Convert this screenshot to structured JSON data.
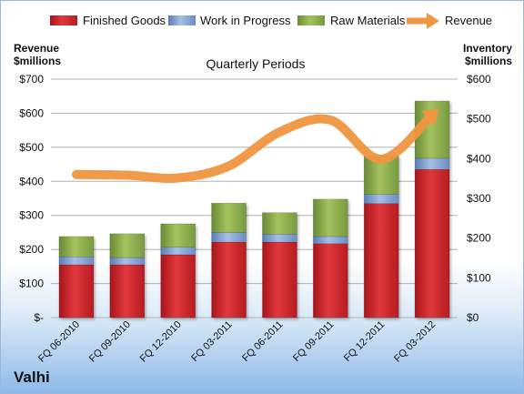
{
  "company": "Valhi",
  "chart_data": {
    "type": "bar",
    "subtype": "stacked bar with line overlay",
    "title": "Quarterly Periods",
    "y_left_label": [
      "Revenue",
      "$millions"
    ],
    "y_right_label": [
      "Inventory",
      "$millions"
    ],
    "y_left_range": [
      0,
      700
    ],
    "y_left_ticks": [
      "$-",
      "$100",
      "$200",
      "$300",
      "$400",
      "$500",
      "$600",
      "$700"
    ],
    "y_right_range": [
      0,
      600
    ],
    "y_right_ticks": [
      "$0",
      "$100",
      "$200",
      "$300",
      "$400",
      "$500",
      "$600"
    ],
    "grid": true,
    "legend_position": "top",
    "categories": [
      "FQ 06-2010",
      "FQ 09-2010",
      "FQ 12-2010",
      "FQ 03-2011",
      "FQ 06-2011",
      "FQ 09-2011",
      "FQ 12-2011",
      "FQ 03-2012"
    ],
    "series": [
      {
        "name": "Finished Goods",
        "axis": "right",
        "color": "#d42a2f",
        "values": [
          133,
          133,
          158,
          190,
          190,
          186,
          287,
          373
        ]
      },
      {
        "name": "Work in Progress",
        "axis": "right",
        "color": "#7d9ed3",
        "values": [
          20,
          18,
          19,
          24,
          20,
          18,
          23,
          28
        ]
      },
      {
        "name": "Raw Materials",
        "axis": "right",
        "color": "#8dae4e",
        "values": [
          51,
          60,
          59,
          74,
          54,
          94,
          97,
          144
        ]
      },
      {
        "name": "Revenue",
        "axis": "left",
        "type": "line",
        "color": "#f09540",
        "values": [
          420,
          418,
          410,
          445,
          545,
          580,
          465,
          595
        ]
      }
    ]
  }
}
